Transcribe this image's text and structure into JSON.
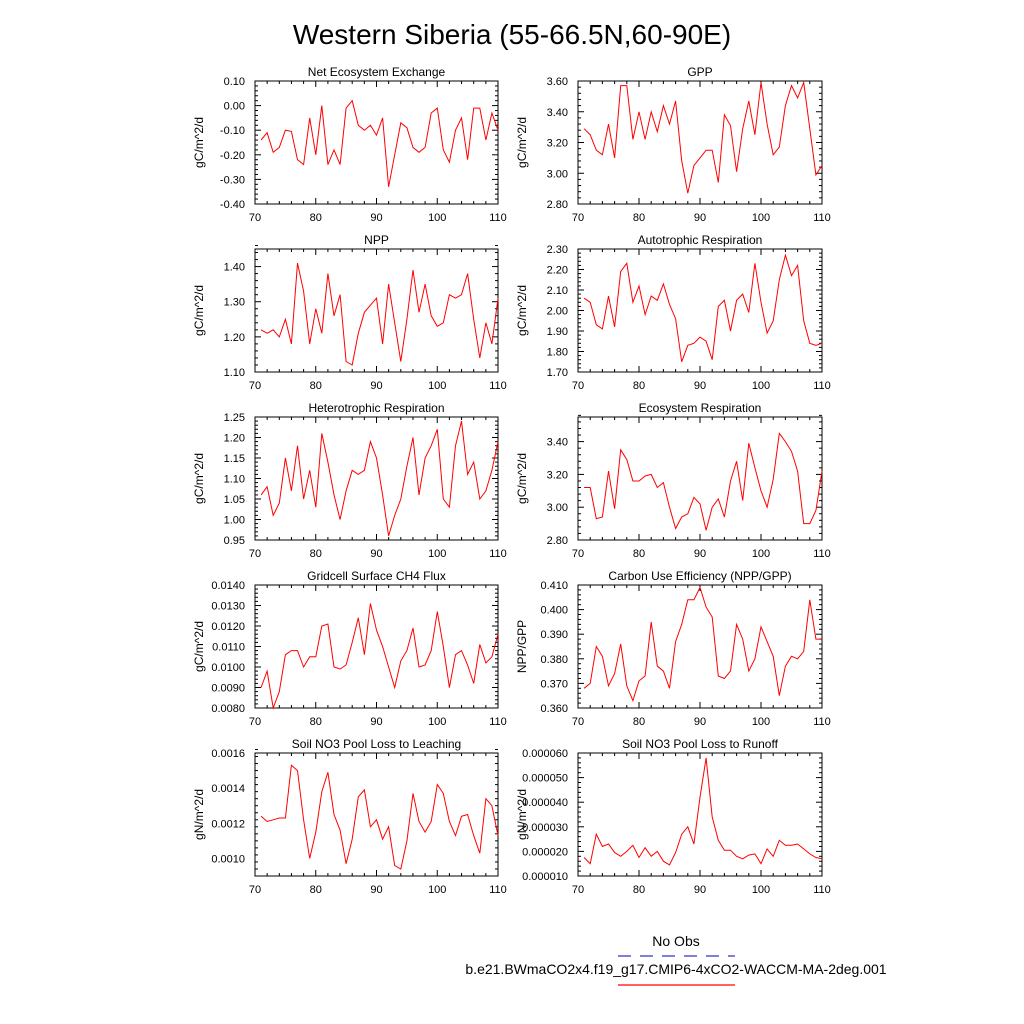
{
  "title": "Western Siberia (55-66.5N,60-90E)",
  "colors": {
    "series": "#ff0000",
    "obs": "#3333cc",
    "axis": "#000000"
  },
  "legend": {
    "obs_label": "No Obs",
    "model_label": "b.e21.BWmaCO2x4.f19_g17.CMIP6-4xCO2-WACCM-MA-2deg.001"
  },
  "chart_data": [
    {
      "type": "line",
      "title": "Net Ecosystem Exchange",
      "ylabel": "gC/m^2/d",
      "xlim": [
        70,
        110
      ],
      "ylim": [
        -0.4,
        0.1
      ],
      "yticks": [
        "-0.40",
        "-0.30",
        "-0.20",
        "-0.10",
        "0.00",
        "0.10"
      ],
      "xticks": [
        "70",
        "80",
        "90",
        "100",
        "110"
      ],
      "x": [
        71,
        72,
        73,
        74,
        75,
        76,
        77,
        78,
        79,
        80,
        81,
        82,
        83,
        84,
        85,
        86,
        87,
        88,
        89,
        90,
        91,
        92,
        93,
        94,
        95,
        96,
        97,
        98,
        99,
        100,
        101,
        102,
        103,
        104,
        105,
        106,
        107,
        108,
        109,
        110
      ],
      "values": [
        -0.14,
        -0.11,
        -0.19,
        -0.17,
        -0.1,
        -0.105,
        -0.22,
        -0.24,
        -0.05,
        -0.2,
        0.0,
        -0.24,
        -0.18,
        -0.24,
        -0.01,
        0.02,
        -0.08,
        -0.1,
        -0.08,
        -0.12,
        -0.05,
        -0.33,
        -0.2,
        -0.07,
        -0.09,
        -0.17,
        -0.19,
        -0.17,
        -0.03,
        -0.01,
        -0.18,
        -0.23,
        -0.1,
        -0.05,
        -0.22,
        -0.01,
        -0.01,
        -0.14,
        -0.03,
        -0.1
      ]
    },
    {
      "type": "line",
      "title": "GPP",
      "ylabel": "gC/m^2/d",
      "xlim": [
        70,
        110
      ],
      "ylim": [
        2.8,
        3.6
      ],
      "yticks": [
        "2.80",
        "3.00",
        "3.20",
        "3.40",
        "3.60"
      ],
      "xticks": [
        "70",
        "80",
        "90",
        "100",
        "110"
      ],
      "x": [
        71,
        72,
        73,
        74,
        75,
        76,
        77,
        78,
        79,
        80,
        81,
        82,
        83,
        84,
        85,
        86,
        87,
        88,
        89,
        90,
        91,
        92,
        93,
        94,
        95,
        96,
        97,
        98,
        99,
        100,
        101,
        102,
        103,
        104,
        105,
        106,
        107,
        108,
        109,
        110
      ],
      "values": [
        3.29,
        3.25,
        3.15,
        3.12,
        3.32,
        3.1,
        3.57,
        3.57,
        3.22,
        3.4,
        3.22,
        3.4,
        3.27,
        3.44,
        3.32,
        3.47,
        3.08,
        2.87,
        3.05,
        3.1,
        3.15,
        3.15,
        2.94,
        3.38,
        3.31,
        3.01,
        3.29,
        3.47,
        3.25,
        3.59,
        3.32,
        3.12,
        3.17,
        3.44,
        3.57,
        3.49,
        3.59,
        3.29,
        2.99,
        3.05
      ]
    },
    {
      "type": "line",
      "title": "NPP",
      "ylabel": "gC/m^2/d",
      "xlim": [
        70,
        110
      ],
      "ylim": [
        1.1,
        1.45
      ],
      "yticks": [
        "1.10",
        "1.20",
        "1.30",
        "1.40"
      ],
      "xticks": [
        "70",
        "80",
        "90",
        "100",
        "110"
      ],
      "x": [
        71,
        72,
        73,
        74,
        75,
        76,
        77,
        78,
        79,
        80,
        81,
        82,
        83,
        84,
        85,
        86,
        87,
        88,
        89,
        90,
        91,
        92,
        93,
        94,
        95,
        96,
        97,
        98,
        99,
        100,
        101,
        102,
        103,
        104,
        105,
        106,
        107,
        108,
        109,
        110
      ],
      "values": [
        1.22,
        1.21,
        1.22,
        1.2,
        1.25,
        1.18,
        1.41,
        1.33,
        1.18,
        1.28,
        1.21,
        1.38,
        1.26,
        1.32,
        1.13,
        1.12,
        1.21,
        1.27,
        1.29,
        1.31,
        1.18,
        1.35,
        1.24,
        1.13,
        1.25,
        1.39,
        1.27,
        1.35,
        1.26,
        1.23,
        1.24,
        1.32,
        1.31,
        1.32,
        1.38,
        1.25,
        1.14,
        1.24,
        1.18,
        1.31
      ]
    },
    {
      "type": "line",
      "title": "Autotrophic Respiration",
      "ylabel": "gC/m^2/d",
      "xlim": [
        70,
        110
      ],
      "ylim": [
        1.7,
        2.3
      ],
      "yticks": [
        "1.70",
        "1.80",
        "1.90",
        "2.00",
        "2.10",
        "2.20",
        "2.30"
      ],
      "xticks": [
        "70",
        "80",
        "90",
        "100",
        "110"
      ],
      "x": [
        71,
        72,
        73,
        74,
        75,
        76,
        77,
        78,
        79,
        80,
        81,
        82,
        83,
        84,
        85,
        86,
        87,
        88,
        89,
        90,
        91,
        92,
        93,
        94,
        95,
        96,
        97,
        98,
        99,
        100,
        101,
        102,
        103,
        104,
        105,
        106,
        107,
        108,
        109,
        110
      ],
      "values": [
        2.06,
        2.04,
        1.93,
        1.91,
        2.07,
        1.92,
        2.19,
        2.23,
        2.04,
        2.12,
        1.98,
        2.07,
        2.05,
        2.13,
        2.03,
        1.96,
        1.75,
        1.83,
        1.84,
        1.87,
        1.85,
        1.76,
        2.02,
        2.05,
        1.9,
        2.05,
        2.08,
        1.99,
        2.23,
        2.04,
        1.89,
        1.95,
        2.15,
        2.27,
        2.17,
        2.22,
        1.95,
        1.84,
        1.83,
        1.84
      ]
    },
    {
      "type": "line",
      "title": "Heterotrophic Respiration",
      "ylabel": "gC/m^2/d",
      "xlim": [
        70,
        110
      ],
      "ylim": [
        0.95,
        1.25
      ],
      "yticks": [
        "0.95",
        "1.00",
        "1.05",
        "1.10",
        "1.15",
        "1.20",
        "1.25"
      ],
      "xticks": [
        "70",
        "80",
        "90",
        "100",
        "110"
      ],
      "x": [
        71,
        72,
        73,
        74,
        75,
        76,
        77,
        78,
        79,
        80,
        81,
        82,
        83,
        84,
        85,
        86,
        87,
        88,
        89,
        90,
        91,
        92,
        93,
        94,
        95,
        96,
        97,
        98,
        99,
        100,
        101,
        102,
        103,
        104,
        105,
        106,
        107,
        108,
        109,
        110
      ],
      "values": [
        1.06,
        1.08,
        1.01,
        1.04,
        1.15,
        1.07,
        1.18,
        1.05,
        1.12,
        1.03,
        1.21,
        1.14,
        1.06,
        1.0,
        1.07,
        1.12,
        1.11,
        1.12,
        1.19,
        1.15,
        1.06,
        0.96,
        1.01,
        1.05,
        1.13,
        1.2,
        1.06,
        1.15,
        1.18,
        1.22,
        1.05,
        1.03,
        1.18,
        1.24,
        1.11,
        1.14,
        1.05,
        1.07,
        1.12,
        1.19
      ]
    },
    {
      "type": "line",
      "title": "Ecosystem Respiration",
      "ylabel": "gC/m^2/d",
      "xlim": [
        70,
        110
      ],
      "ylim": [
        2.8,
        3.55
      ],
      "yticks": [
        "2.80",
        "3.00",
        "3.20",
        "3.40"
      ],
      "xticks": [
        "70",
        "80",
        "90",
        "100",
        "110"
      ],
      "x": [
        71,
        72,
        73,
        74,
        75,
        76,
        77,
        78,
        79,
        80,
        81,
        82,
        83,
        84,
        85,
        86,
        87,
        88,
        89,
        90,
        91,
        92,
        93,
        94,
        95,
        96,
        97,
        98,
        99,
        100,
        101,
        102,
        103,
        104,
        105,
        106,
        107,
        108,
        109,
        110
      ],
      "values": [
        3.12,
        3.12,
        2.93,
        2.94,
        3.22,
        2.99,
        3.35,
        3.29,
        3.16,
        3.16,
        3.19,
        3.2,
        3.12,
        3.15,
        3.0,
        2.87,
        2.94,
        2.96,
        3.06,
        3.02,
        2.86,
        3.0,
        3.05,
        2.94,
        3.16,
        3.28,
        3.04,
        3.39,
        3.24,
        3.1,
        3.0,
        3.17,
        3.45,
        3.4,
        3.34,
        3.22,
        2.9,
        2.9,
        2.98,
        3.22
      ]
    },
    {
      "type": "line",
      "title": "Gridcell Surface CH4 Flux",
      "ylabel": "gC/m^2/d",
      "xlim": [
        70,
        110
      ],
      "ylim": [
        0.008,
        0.014
      ],
      "yticks": [
        "0.0080",
        "0.0090",
        "0.0100",
        "0.0110",
        "0.0120",
        "0.0130",
        "0.0140"
      ],
      "xticks": [
        "70",
        "80",
        "90",
        "100",
        "110"
      ],
      "x": [
        71,
        72,
        73,
        74,
        75,
        76,
        77,
        78,
        79,
        80,
        81,
        82,
        83,
        84,
        85,
        86,
        87,
        88,
        89,
        90,
        91,
        92,
        93,
        94,
        95,
        96,
        97,
        98,
        99,
        100,
        101,
        102,
        103,
        104,
        105,
        106,
        107,
        108,
        109,
        110
      ],
      "values": [
        0.009,
        0.0098,
        0.008,
        0.0088,
        0.0106,
        0.0108,
        0.0108,
        0.01,
        0.0105,
        0.0105,
        0.012,
        0.0121,
        0.01,
        0.0099,
        0.0101,
        0.0112,
        0.0124,
        0.0106,
        0.0131,
        0.0118,
        0.011,
        0.01,
        0.009,
        0.0103,
        0.0108,
        0.0119,
        0.01,
        0.0101,
        0.0108,
        0.0127,
        0.011,
        0.009,
        0.0106,
        0.0108,
        0.0101,
        0.0092,
        0.0111,
        0.0102,
        0.0105,
        0.0116
      ]
    },
    {
      "type": "line",
      "title": "Carbon Use Efficiency (NPP/GPP)",
      "ylabel": "NPP/GPP",
      "xlim": [
        70,
        110
      ],
      "ylim": [
        0.36,
        0.41
      ],
      "yticks": [
        "0.360",
        "0.370",
        "0.380",
        "0.390",
        "0.400",
        "0.410"
      ],
      "xticks": [
        "70",
        "80",
        "90",
        "100",
        "110"
      ],
      "x": [
        71,
        72,
        73,
        74,
        75,
        76,
        77,
        78,
        79,
        80,
        81,
        82,
        83,
        84,
        85,
        86,
        87,
        88,
        89,
        90,
        91,
        92,
        93,
        94,
        95,
        96,
        97,
        98,
        99,
        100,
        101,
        102,
        103,
        104,
        105,
        106,
        107,
        108,
        109,
        110
      ],
      "values": [
        0.368,
        0.37,
        0.385,
        0.381,
        0.369,
        0.374,
        0.386,
        0.369,
        0.363,
        0.371,
        0.373,
        0.395,
        0.377,
        0.375,
        0.368,
        0.387,
        0.394,
        0.404,
        0.404,
        0.409,
        0.401,
        0.397,
        0.373,
        0.372,
        0.375,
        0.394,
        0.388,
        0.375,
        0.38,
        0.393,
        0.387,
        0.381,
        0.365,
        0.377,
        0.381,
        0.38,
        0.383,
        0.404,
        0.388,
        0.388
      ]
    },
    {
      "type": "line",
      "title": "Soil NO3 Pool Loss to Leaching",
      "ylabel": "gN/m^2/d",
      "xlim": [
        70,
        110
      ],
      "ylim": [
        0.0009,
        0.0016
      ],
      "yticks": [
        "0.0010",
        "0.0012",
        "0.0014",
        "0.0016"
      ],
      "xticks": [
        "70",
        "80",
        "90",
        "100",
        "110"
      ],
      "x": [
        71,
        72,
        73,
        74,
        75,
        76,
        77,
        78,
        79,
        80,
        81,
        82,
        83,
        84,
        85,
        86,
        87,
        88,
        89,
        90,
        91,
        92,
        93,
        94,
        95,
        96,
        97,
        98,
        99,
        100,
        101,
        102,
        103,
        104,
        105,
        106,
        107,
        108,
        109,
        110
      ],
      "values": [
        0.00124,
        0.00121,
        0.00122,
        0.00123,
        0.00123,
        0.00153,
        0.0015,
        0.00122,
        0.001,
        0.00115,
        0.00138,
        0.00149,
        0.00125,
        0.00116,
        0.00097,
        0.00111,
        0.00135,
        0.00139,
        0.00118,
        0.00122,
        0.00111,
        0.00118,
        0.00096,
        0.00094,
        0.0011,
        0.00137,
        0.00121,
        0.00115,
        0.00121,
        0.00142,
        0.00137,
        0.00121,
        0.00113,
        0.00124,
        0.00125,
        0.00113,
        0.00103,
        0.00134,
        0.0013,
        0.00113
      ]
    },
    {
      "type": "line",
      "title": "Soil NO3 Pool Loss to Runoff",
      "ylabel": "gN/m^2/d",
      "xlim": [
        70,
        110
      ],
      "ylim": [
        1e-05,
        6e-05
      ],
      "yticks": [
        "0.000010",
        "0.000020",
        "0.000030",
        "0.000040",
        "0.000050",
        "0.000060"
      ],
      "xticks": [
        "70",
        "80",
        "90",
        "100",
        "110"
      ],
      "x": [
        71,
        72,
        73,
        74,
        75,
        76,
        77,
        78,
        79,
        80,
        81,
        82,
        83,
        84,
        85,
        86,
        87,
        88,
        89,
        90,
        91,
        92,
        93,
        94,
        95,
        96,
        97,
        98,
        99,
        100,
        101,
        102,
        103,
        104,
        105,
        106,
        107,
        108,
        109,
        110
      ],
      "values": [
        1.75e-05,
        1.5e-05,
        2.7e-05,
        2.2e-05,
        2.3e-05,
        1.95e-05,
        1.8e-05,
        2e-05,
        2.25e-05,
        1.75e-05,
        2.15e-05,
        1.8e-05,
        2e-05,
        1.6e-05,
        1.45e-05,
        1.95e-05,
        2.7e-05,
        3e-05,
        2.3e-05,
        4.2e-05,
        5.8e-05,
        3.4e-05,
        2.45e-05,
        2.05e-05,
        2.05e-05,
        1.8e-05,
        1.7e-05,
        1.85e-05,
        1.9e-05,
        1.5e-05,
        2.1e-05,
        1.8e-05,
        2.45e-05,
        2.25e-05,
        2.25e-05,
        2.3e-05,
        2.1e-05,
        1.9e-05,
        1.75e-05,
        1.7e-05
      ]
    }
  ]
}
